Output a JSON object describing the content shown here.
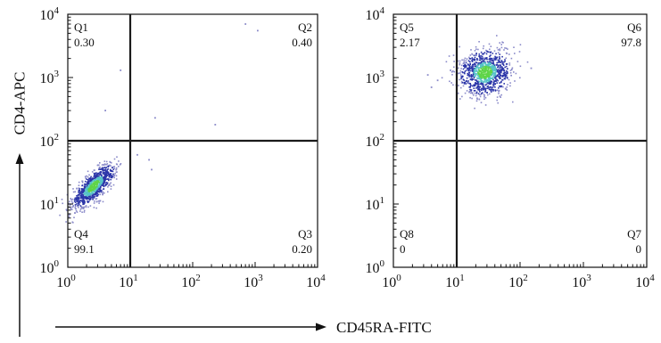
{
  "chart_data": [
    {
      "type": "scatter",
      "scale": "log",
      "xlim": [
        1,
        10000
      ],
      "ylim": [
        1,
        10000
      ],
      "gates": {
        "x": 10,
        "y": 100
      },
      "tick_labels": [
        "10",
        "10",
        "10",
        "10",
        "10"
      ],
      "tick_exponents": [
        "0",
        "1",
        "2",
        "3",
        "4"
      ],
      "quadrants": [
        {
          "name": "Q1",
          "value": "0.30",
          "position": "top-left"
        },
        {
          "name": "Q2",
          "value": "0.40",
          "position": "top-right"
        },
        {
          "name": "Q3",
          "value": "0.20",
          "position": "bottom-right"
        },
        {
          "name": "Q4",
          "value": "99.1",
          "position": "bottom-left"
        }
      ],
      "population": {
        "center_x": 2.6,
        "center_y": 19,
        "spread_log_x": 0.17,
        "spread_log_y": 0.17,
        "correlation": 0.75,
        "count": 900
      },
      "outliers": [
        {
          "x": 700,
          "y": 7000
        },
        {
          "x": 1100,
          "y": 5500
        },
        {
          "x": 7,
          "y": 1300
        },
        {
          "x": 4,
          "y": 300
        },
        {
          "x": 25,
          "y": 230
        },
        {
          "x": 230,
          "y": 180
        },
        {
          "x": 20,
          "y": 50
        },
        {
          "x": 13,
          "y": 60
        },
        {
          "x": 22,
          "y": 35
        }
      ]
    },
    {
      "type": "scatter",
      "scale": "log",
      "xlim": [
        1,
        10000
      ],
      "ylim": [
        1,
        10000
      ],
      "gates": {
        "x": 10,
        "y": 100
      },
      "tick_labels": [
        "10",
        "10",
        "10",
        "10",
        "10"
      ],
      "tick_exponents": [
        "0",
        "1",
        "2",
        "3",
        "4"
      ],
      "quadrants": [
        {
          "name": "Q5",
          "value": "2.17",
          "position": "top-left"
        },
        {
          "name": "Q6",
          "value": "97.8",
          "position": "top-right"
        },
        {
          "name": "Q7",
          "value": "0",
          "position": "bottom-right"
        },
        {
          "name": "Q8",
          "value": "0",
          "position": "bottom-left"
        }
      ],
      "population": {
        "center_x": 28,
        "center_y": 1200,
        "spread_log_x": 0.2,
        "spread_log_y": 0.18,
        "correlation": 0.1,
        "count": 1000
      },
      "outliers": [
        {
          "x": 5,
          "y": 900
        },
        {
          "x": 4,
          "y": 700
        },
        {
          "x": 150,
          "y": 1400
        },
        {
          "x": 8,
          "y": 1300
        },
        {
          "x": 3.5,
          "y": 1100
        }
      ]
    }
  ],
  "axes": {
    "ylabel": "CD4-APC",
    "xlabel": "CD45RA-FITC"
  },
  "colors": {
    "axis": "#111111",
    "gate_line": "#1a1a1a",
    "low_density": "#2b35a8",
    "mid_density": "#56c3c8",
    "high_density": "#5fd448",
    "sparse": "#8a8ac9"
  }
}
